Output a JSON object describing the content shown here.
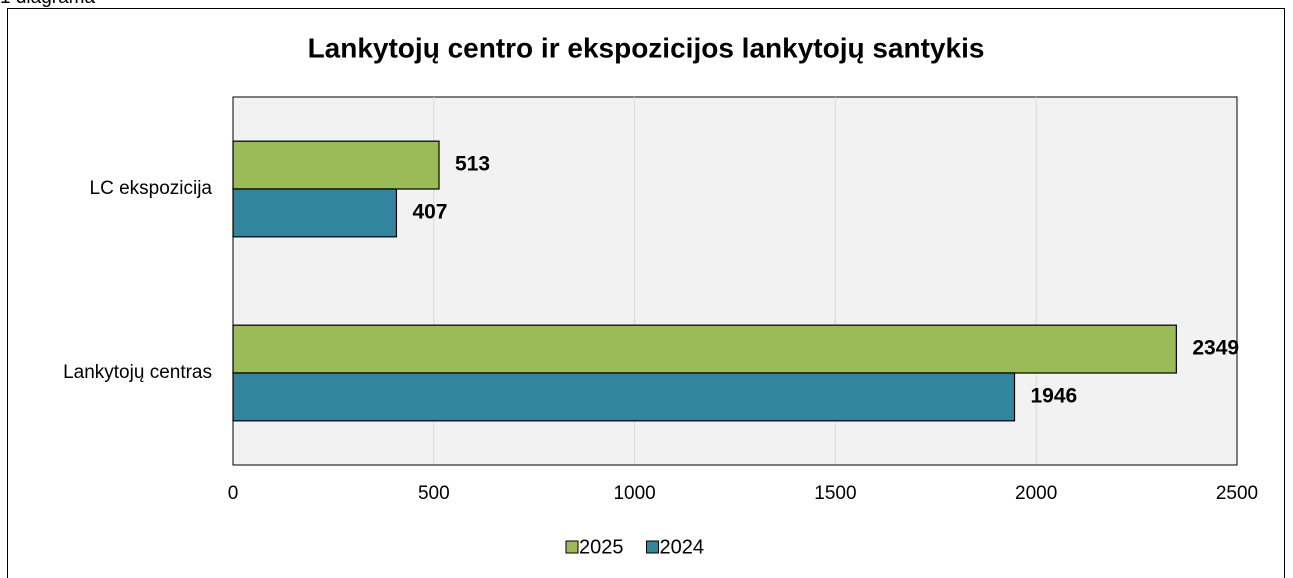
{
  "caption": "1 diagrama",
  "chart_data": {
    "type": "barh",
    "title": "Lankytojų centro ir ekspozicijos lankytojų santykis",
    "categories": [
      "LC ekspozicija",
      "Lankytojų centras"
    ],
    "series": [
      {
        "name": "2025",
        "color": "#9bbb59",
        "values": [
          513,
          2349
        ]
      },
      {
        "name": "2024",
        "color": "#31859c",
        "values": [
          407,
          1946
        ]
      }
    ],
    "xlim": [
      0,
      2500
    ],
    "xticks": [
      0,
      500,
      1000,
      1500,
      2000,
      2500
    ],
    "grid": true,
    "legend": "bottom"
  }
}
